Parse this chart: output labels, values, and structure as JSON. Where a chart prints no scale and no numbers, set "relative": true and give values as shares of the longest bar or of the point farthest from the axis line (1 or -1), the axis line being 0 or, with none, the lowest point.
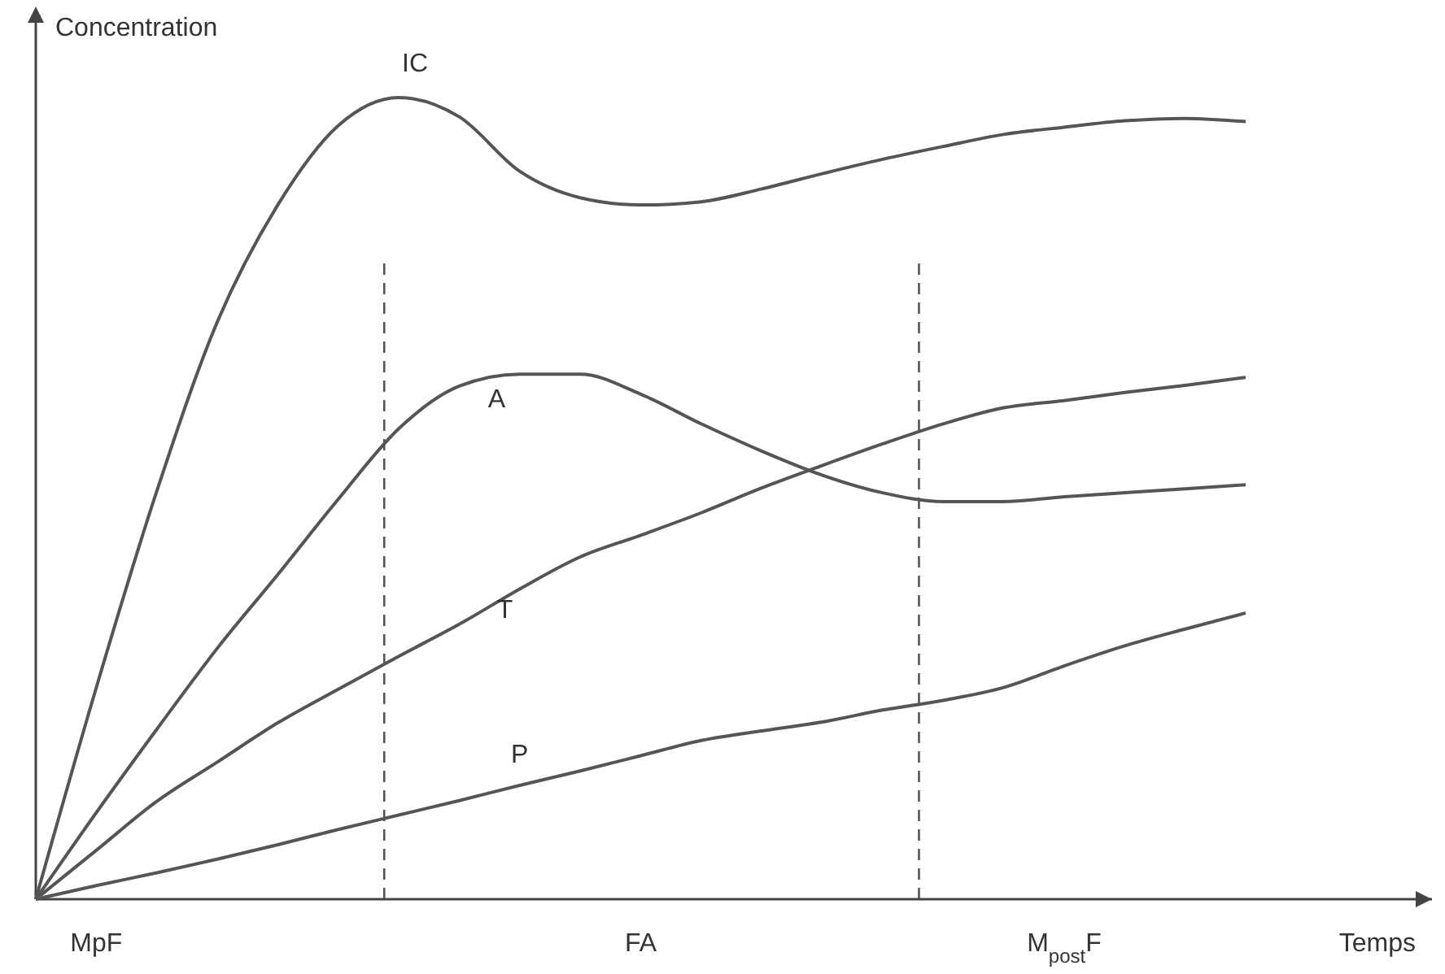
{
  "chart_data": {
    "type": "line",
    "relative": true,
    "ylabel": "Concentration",
    "xlabel": "Temps",
    "categories": [
      null,
      "MpF",
      null,
      null,
      null,
      null,
      null,
      null,
      null,
      null,
      "FA",
      null,
      null,
      null,
      null,
      null,
      null,
      "M$_{post}$F",
      null,
      null,
      null,
      null,
      null,
      null
    ],
    "grid": false,
    "legend": false,
    "line_style": "solid",
    "marker": "none",
    "series": [
      {
        "name": "IC",
        "color": "#555555",
        "values": [
          0,
          0.264,
          0.509,
          0.72,
          0.866,
          0.965,
          1,
          0.976,
          0.908,
          0.875,
          0.866,
          0.87,
          0.886,
          0.905,
          0.923,
          0.939,
          0.954,
          0.963,
          0.971,
          0.974,
          0.97,
          null,
          null,
          null
        ]
      },
      {
        "name": "A",
        "color": "#555555",
        "values": [
          0,
          0.108,
          0.212,
          0.313,
          0.405,
          0.499,
          0.587,
          0.64,
          0.655,
          0.655,
          0.63,
          0.593,
          0.559,
          0.529,
          0.507,
          0.496,
          0.496,
          0.502,
          0.507,
          0.512,
          0.517,
          null,
          null,
          null
        ]
      },
      {
        "name": "T",
        "color": "#555555",
        "values": [
          0,
          0.061,
          0.122,
          0.171,
          0.22,
          0.262,
          0.303,
          0.343,
          0.387,
          0.427,
          0.454,
          0.482,
          0.513,
          0.541,
          0.568,
          0.593,
          0.613,
          0.622,
          0.632,
          0.641,
          0.651,
          null,
          null,
          null
        ]
      },
      {
        "name": "P",
        "color": "#555555",
        "values": [
          0,
          0.017,
          0.033,
          0.05,
          0.068,
          0.087,
          0.105,
          0.123,
          0.142,
          0.16,
          0.179,
          0.198,
          0.21,
          0.221,
          0.236,
          0.248,
          0.264,
          0.291,
          0.316,
          0.337,
          0.357,
          null,
          null,
          null
        ]
      }
    ]
  }
}
